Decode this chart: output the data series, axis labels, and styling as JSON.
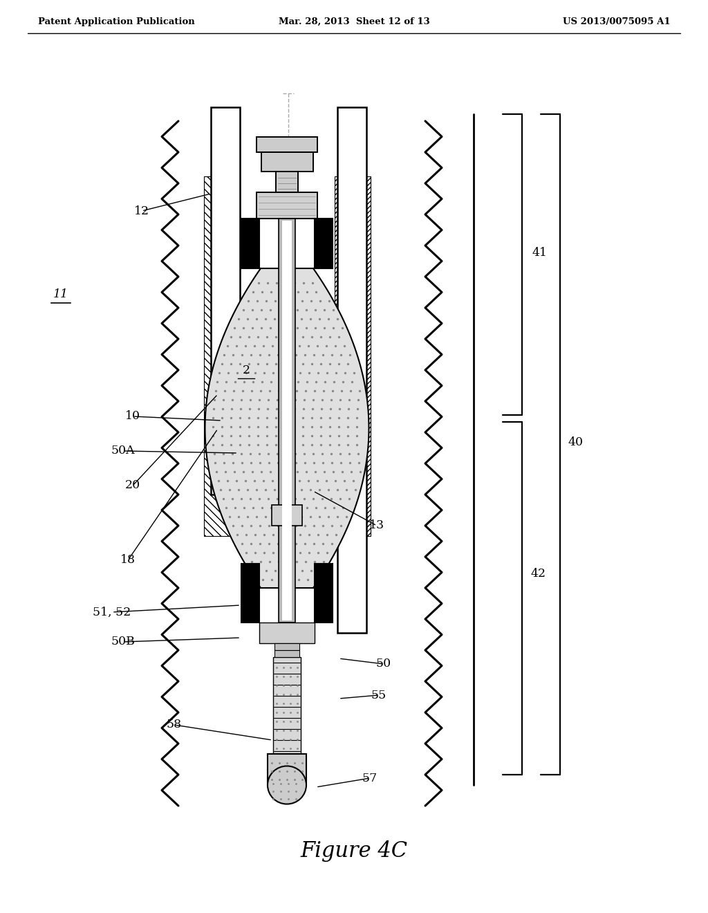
{
  "title": "Figure 4C",
  "header_left": "Patent Application Publication",
  "header_mid": "Mar. 28, 2013  Sheet 12 of 13",
  "header_right": "US 2013/0075095 A1",
  "bg_color": "#ffffff",
  "lc": "#000000",
  "gray_light": "#d8d8d8",
  "gray_med": "#aaaaaa",
  "gray_dark": "#555555",
  "dot_gray": "#cccccc"
}
